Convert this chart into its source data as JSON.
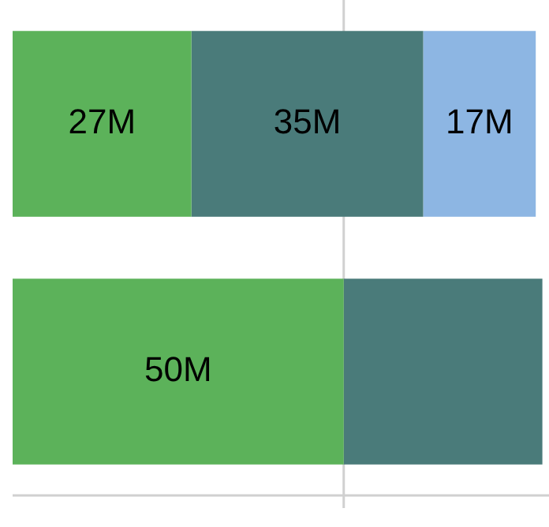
{
  "chart_data": {
    "type": "bar",
    "orientation": "horizontal",
    "stacked": true,
    "categories": [
      null,
      null
    ],
    "series": [
      {
        "color": "#5cb25a",
        "values": [
          27,
          50
        ],
        "value_labels": [
          "27M",
          "50M"
        ]
      },
      {
        "color": "#4a7b7a",
        "values": [
          35,
          30
        ],
        "value_labels": [
          "35M",
          null
        ]
      },
      {
        "color": "#8db6e3",
        "values": [
          17,
          null
        ],
        "value_labels": [
          "17M",
          null
        ]
      }
    ],
    "xlim": [
      0,
      81
    ],
    "ref_lines": [
      {
        "axis": "x",
        "value": 50,
        "color": "#d0d0d0"
      }
    ],
    "legend": false
  }
}
